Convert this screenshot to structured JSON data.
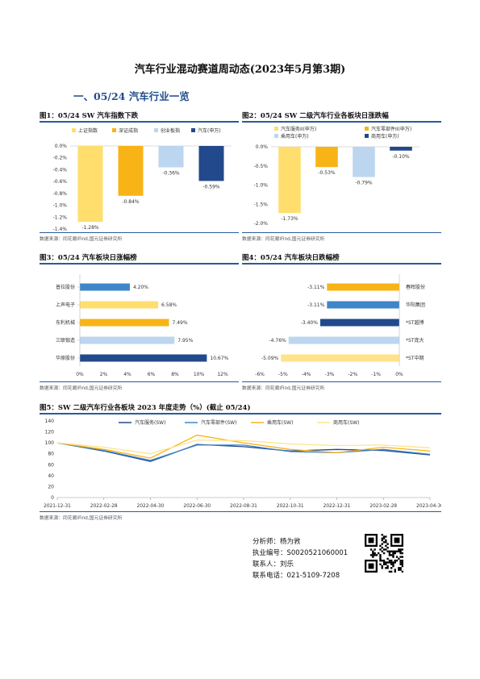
{
  "page": {
    "title": "汽车行业混动赛道周动态(2023年5月第3期)",
    "section": "一、05/24 汽车行业一览"
  },
  "colors": {
    "light_yellow": "#FFDE6E",
    "yellow": "#F8B417",
    "light_blue": "#BCD6EF",
    "blue": "#3F85C9",
    "dark_blue": "#22498C",
    "pale_yellow": "#FFE38A",
    "accent": "#2B5A9A"
  },
  "source_text": "数据来源：同花顺iFind,国元证券研究所",
  "figures": {
    "fig1": {
      "title": "图1：05/24 SW 汽车指数下跌"
    },
    "fig2": {
      "title": "图2：05/24 SW 二级汽车行业各板块日涨跌幅"
    },
    "fig3": {
      "title": "图3：05/24 汽车板块日涨幅榜"
    },
    "fig4": {
      "title": "图4：05/24 汽车板块日跌幅榜"
    },
    "fig5": {
      "title": "图5：SW 二级汽车行业各板块 2023 年度走势（%）(截止 05/24)"
    }
  },
  "chart_data": [
    {
      "id": "fig1",
      "type": "bar",
      "categories": [
        "上证指数",
        "深证成指",
        "创业板指",
        "汽车(申万)"
      ],
      "values": [
        -1.28,
        -0.84,
        -0.36,
        -0.59
      ],
      "labels": [
        "-1.28%",
        "-0.84%",
        "-0.36%",
        "-0.59%"
      ],
      "ylim": [
        -1.4,
        0.0
      ],
      "yticks": [
        "0.0%",
        "-0.2%",
        "-0.4%",
        "-0.6%",
        "-0.8%",
        "-1.0%",
        "-1.2%",
        "-1.4%"
      ],
      "legend": "top"
    },
    {
      "id": "fig2",
      "type": "bar",
      "categories": [
        "汽车服务II(申万)",
        "汽车零部件II(申万)",
        "乘用车(申万)",
        "商用车(申万)"
      ],
      "values": [
        -1.73,
        -0.53,
        -0.79,
        -0.1
      ],
      "labels": [
        "-1.73%",
        "-0.53%",
        "-0.79%",
        "-0.10%"
      ],
      "ylim": [
        -2.0,
        0.0
      ],
      "yticks": [
        "0.0%",
        "-0.5%",
        "-1.0%",
        "-1.5%",
        "-2.0%"
      ],
      "legend": "top"
    },
    {
      "id": "fig3",
      "type": "bar",
      "orientation": "horizontal",
      "categories": [
        "普拉股份",
        "上声电子",
        "东利机械",
        "三联锻造",
        "华原股份"
      ],
      "values": [
        4.2,
        6.58,
        7.49,
        7.95,
        10.67
      ],
      "labels": [
        "4.20%",
        "6.58%",
        "7.49%",
        "7.95%",
        "10.67%"
      ],
      "xlim": [
        0,
        12
      ],
      "xticks": [
        "0%",
        "2%",
        "4%",
        "6%",
        "8%",
        "10%",
        "12%"
      ]
    },
    {
      "id": "fig4",
      "type": "bar",
      "orientation": "horizontal",
      "categories": [
        "春晖股份",
        "华阳集团",
        "*ST越博",
        "*ST庞大",
        "*ST中期"
      ],
      "values": [
        -3.11,
        -3.11,
        -3.4,
        -4.76,
        -5.09
      ],
      "labels": [
        "-3.11%",
        "-3.11%",
        "-3.40%",
        "-4.76%",
        "-5.09%"
      ],
      "xlim": [
        -6,
        0
      ],
      "xticks": [
        "-6%",
        "-5%",
        "-4%",
        "-3%",
        "-2%",
        "-1%",
        "0%"
      ]
    },
    {
      "id": "fig5",
      "type": "line",
      "x": [
        "2021-12-31",
        "2022-02-28",
        "2022-04-30",
        "2022-06-30",
        "2022-08-31",
        "2022-10-31",
        "2022-12-31",
        "2023-02-28",
        "2023-04-30"
      ],
      "ylim": [
        0,
        140
      ],
      "yticks": [
        "0",
        "20",
        "40",
        "60",
        "80",
        "100",
        "120",
        "140"
      ],
      "legend": "top",
      "series": [
        {
          "name": "汽车服务(SW)",
          "values": [
            100,
            85,
            66,
            97,
            93,
            85,
            88,
            86,
            78
          ]
        },
        {
          "name": "汽车零部件(SW)",
          "values": [
            100,
            86,
            68,
            96,
            96,
            84,
            82,
            88,
            79
          ]
        },
        {
          "name": "乘用车(SW)",
          "values": [
            100,
            88,
            72,
            114,
            100,
            88,
            82,
            92,
            85
          ]
        },
        {
          "name": "商用车(SW)",
          "values": [
            100,
            92,
            80,
            105,
            104,
            98,
            95,
            96,
            91
          ]
        }
      ]
    }
  ],
  "contact": {
    "analyst": "分析师：杨为敩",
    "license": "执业编号：S0020521060001",
    "contact_person": "联系人：刘乐",
    "phone": "联系电话：021-5109-7208"
  }
}
